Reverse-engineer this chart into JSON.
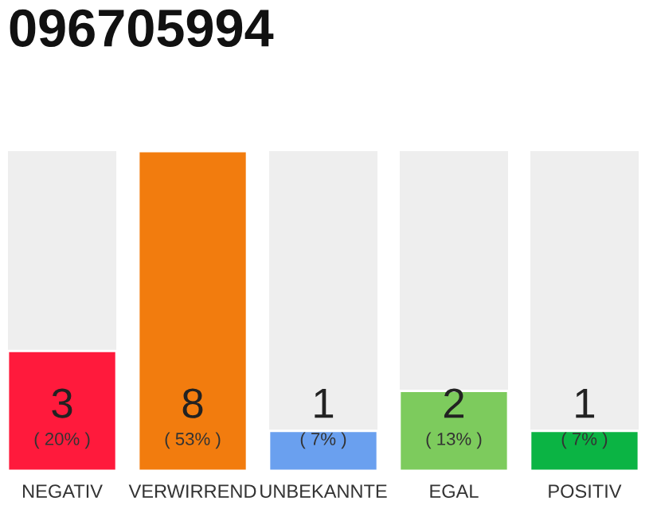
{
  "chart_data": {
    "type": "bar",
    "title": "096705994",
    "categories": [
      "NEGATIV",
      "VERWIRREND",
      "UNBEKANNTE",
      "EGAL",
      "POSITIV"
    ],
    "values": [
      3,
      8,
      1,
      2,
      1
    ],
    "colors": [
      "#ff1a3c",
      "#f27c0e",
      "#6aa0ef",
      "#7dcb5d",
      "#0bb444"
    ],
    "value_labels": [
      "3",
      "8",
      "1",
      "2",
      "1"
    ],
    "annotations": [
      "( 20% )",
      "( 53% )",
      "( 7% )",
      "( 13% )",
      "( 7% )"
    ],
    "ylim": [
      0,
      8
    ],
    "tick_labels": "x",
    "grid": false,
    "legend": false
  }
}
